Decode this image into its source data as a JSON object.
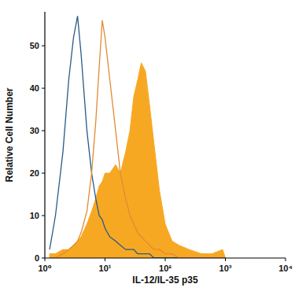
{
  "chart_data": {
    "type": "line",
    "log": "x",
    "x_label": "IL-12/IL-35 p35",
    "y_label": "Relative Cell Number",
    "x": [
      1.2,
      1.5,
      2,
      2.5,
      3,
      3.5,
      4,
      5,
      6,
      7,
      8,
      9,
      10,
      12,
      15,
      18,
      22,
      26,
      30,
      35,
      40,
      47,
      55,
      65,
      80,
      100,
      130,
      170,
      250,
      400,
      600,
      900,
      1000
    ],
    "series": [
      {
        "type": "area",
        "color": "#f7a823",
        "values": [
          1,
          1,
          2,
          2,
          3,
          4,
          5,
          8,
          11,
          14,
          17,
          18,
          20,
          20,
          22,
          20,
          25,
          30,
          38,
          42,
          46,
          44,
          36,
          27,
          16,
          8,
          4,
          3,
          2,
          1,
          1,
          2,
          0
        ]
      },
      {
        "type": "line",
        "color": "#2a5a86",
        "values": [
          2,
          10,
          25,
          42,
          52,
          57,
          48,
          30,
          20,
          14,
          10,
          9,
          7,
          5,
          4,
          3,
          2,
          2,
          2,
          1,
          1,
          1,
          1,
          0,
          0,
          0,
          0,
          0,
          0,
          0,
          0,
          0,
          0
        ]
      },
      {
        "type": "line",
        "color": "#e48a2e",
        "values": [
          0,
          0,
          1,
          2,
          3,
          4,
          6,
          11,
          20,
          32,
          45,
          56,
          52,
          42,
          30,
          20,
          14,
          10,
          8,
          6,
          5,
          4,
          3,
          2,
          2,
          1,
          1,
          0,
          0,
          0,
          0,
          0,
          0
        ]
      }
    ],
    "xlim": [
      1,
      10000
    ],
    "xticks": [
      {
        "value": 1,
        "label": "10⁰"
      },
      {
        "value": 10,
        "label": "10¹"
      },
      {
        "value": 100,
        "label": "10²"
      },
      {
        "value": 1000,
        "label": "10³"
      },
      {
        "value": 10000,
        "label": "10⁴"
      }
    ],
    "ylim": [
      0,
      58
    ],
    "yticks": [
      0,
      10,
      20,
      30,
      40,
      50
    ],
    "grid": false
  }
}
